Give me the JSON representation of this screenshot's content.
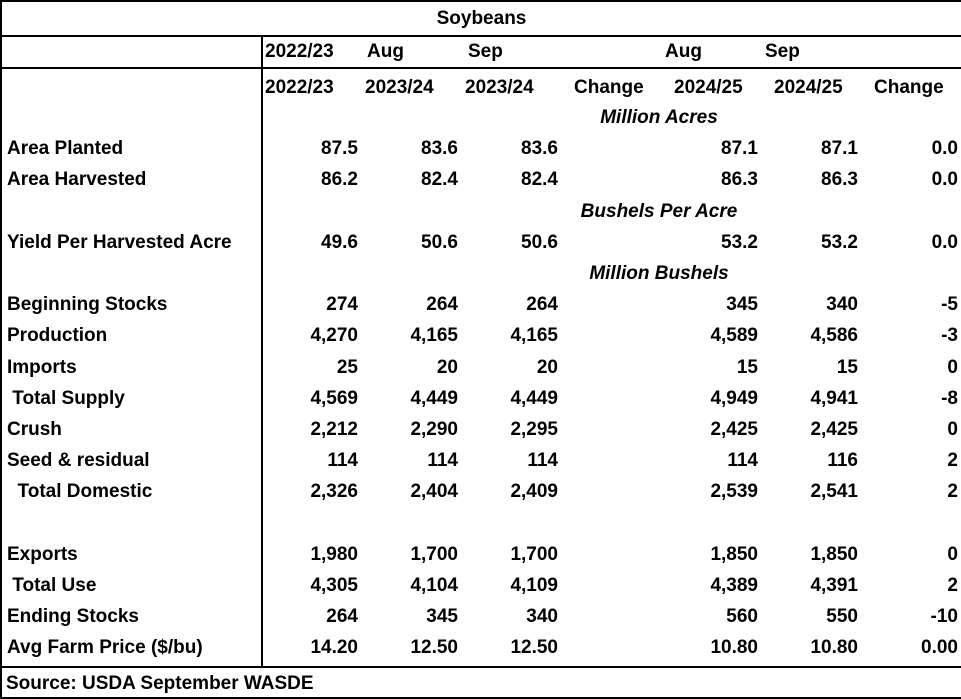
{
  "title": "Soybeans",
  "header_top": [
    "2022/23",
    "Aug",
    "Sep",
    "Aug",
    "Sep"
  ],
  "header_bottom": [
    "2022/23",
    "2023/24",
    "2023/24",
    "Change",
    "2024/25",
    "2024/25",
    "Change"
  ],
  "units": {
    "acres": "Million Acres",
    "yield": "Bushels Per Acre",
    "bushels": "Million Bushels"
  },
  "rows": [
    {
      "label": "Area Planted",
      "values": [
        "87.5",
        "83.6",
        "83.6",
        "",
        "87.1",
        "87.1",
        "0.0"
      ]
    },
    {
      "label": "Area Harvested",
      "values": [
        "86.2",
        "82.4",
        "82.4",
        "",
        "86.3",
        "86.3",
        "0.0"
      ]
    },
    {
      "label": "Yield Per Harvested Acre",
      "values": [
        "49.6",
        "50.6",
        "50.6",
        "",
        "53.2",
        "53.2",
        "0.0"
      ]
    },
    {
      "label": "Beginning Stocks",
      "values": [
        "274",
        "264",
        "264",
        "",
        "345",
        "340",
        "-5"
      ]
    },
    {
      "label": "Production",
      "values": [
        "4,270",
        "4,165",
        "4,165",
        "",
        "4,589",
        "4,586",
        "-3"
      ]
    },
    {
      "label": "Imports",
      "values": [
        "25",
        "20",
        "20",
        "",
        "15",
        "15",
        "0"
      ]
    },
    {
      "label": " Total Supply",
      "values": [
        "4,569",
        "4,449",
        "4,449",
        "",
        "4,949",
        "4,941",
        "-8"
      ]
    },
    {
      "label": "Crush",
      "values": [
        "2,212",
        "2,290",
        "2,295",
        "",
        "2,425",
        "2,425",
        "0"
      ]
    },
    {
      "label": "Seed & residual",
      "values": [
        "114",
        "114",
        "114",
        "",
        "114",
        "116",
        "2"
      ]
    },
    {
      "label": "  Total Domestic",
      "values": [
        "2,326",
        "2,404",
        "2,409",
        "",
        "2,539",
        "2,541",
        "2"
      ]
    },
    {
      "label": "Exports",
      "values": [
        "1,980",
        "1,700",
        "1,700",
        "",
        "1,850",
        "1,850",
        "0"
      ]
    },
    {
      "label": " Total Use",
      "values": [
        "4,305",
        "4,104",
        "4,109",
        "",
        "4,389",
        "4,391",
        "2"
      ]
    },
    {
      "label": "Ending Stocks",
      "values": [
        "264",
        "345",
        "340",
        "",
        "560",
        "550",
        "-10"
      ]
    },
    {
      "label": "Avg Farm Price ($/bu)",
      "values": [
        "14.20",
        "12.50",
        "12.50",
        "",
        "10.80",
        "10.80",
        "0.00"
      ]
    }
  ],
  "source": "Source: USDA September WASDE"
}
